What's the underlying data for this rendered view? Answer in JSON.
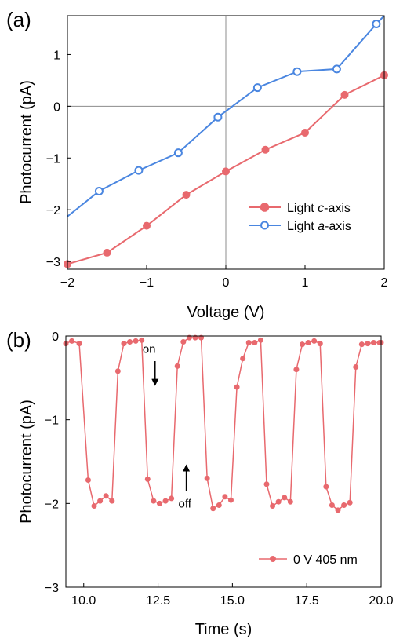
{
  "colors": {
    "red": "#e8696e",
    "blue": "#4a86e0",
    "axis": "#000000",
    "zero": "#8c8c8c"
  },
  "chart_data": [
    {
      "type": "line",
      "panel_label": "(a)",
      "xlabel": "Voltage (V)",
      "ylabel": "Photocurrent (pA)",
      "xlim": [
        -2,
        2
      ],
      "ylim": [
        -3.15,
        1.75
      ],
      "xticks": [
        -2,
        -1,
        0,
        1,
        2
      ],
      "xtick_labels": [
        "−2",
        "−1",
        "0",
        "1",
        "2"
      ],
      "yticks": [
        -3,
        -2,
        -1,
        0,
        1
      ],
      "ytick_labels": [
        "−3",
        "−2",
        "−1",
        "0",
        "1"
      ],
      "legend_position": "lower-right",
      "series": [
        {
          "name_prefix": "Light ",
          "name_italic": "c",
          "name_suffix": "-axis",
          "marker": "filled-circle",
          "color_key": "red",
          "x": [
            -2,
            -1.5,
            -1,
            -0.5,
            0,
            0.5,
            1,
            1.5,
            2
          ],
          "y": [
            -3.05,
            -2.83,
            -2.31,
            -1.71,
            -1.26,
            -0.84,
            -0.51,
            0.22,
            0.6
          ]
        },
        {
          "name_prefix": "Light ",
          "name_italic": "a",
          "name_suffix": "-axis",
          "marker": "open-circle",
          "color_key": "blue",
          "x": [
            -2,
            -1.6,
            -1.1,
            -0.6,
            -0.1,
            0.4,
            0.9,
            1.4,
            1.9,
            2
          ],
          "y": [
            -2.13,
            -1.64,
            -1.24,
            -0.9,
            -0.21,
            0.36,
            0.67,
            0.72,
            1.59,
            1.75
          ],
          "marker_mask": [
            false,
            true,
            true,
            true,
            true,
            true,
            true,
            true,
            true,
            false
          ]
        }
      ]
    },
    {
      "type": "line",
      "panel_label": "(b)",
      "xlabel": "Time (s)",
      "ylabel": "Photocurrent (pA)",
      "xlim": [
        9.4,
        20
      ],
      "ylim": [
        -3,
        0
      ],
      "xticks": [
        10,
        12.5,
        15,
        17.5,
        20
      ],
      "xtick_labels": [
        "10.0",
        "12.5",
        "15.0",
        "17.5",
        "20.0"
      ],
      "yticks": [
        -3,
        -2,
        -1,
        0
      ],
      "ytick_labels": [
        "−3",
        "−2",
        "−1",
        "0"
      ],
      "legend_position": "lower-right",
      "annotations": [
        {
          "text": "on",
          "x": 12.2,
          "y": -0.2,
          "arrow_from": [
            12.4,
            -0.3
          ],
          "arrow_to": [
            12.4,
            -0.58
          ]
        },
        {
          "text": "off",
          "x": 13.4,
          "y": -2.05,
          "arrow_from": [
            13.45,
            -1.85
          ],
          "arrow_to": [
            13.45,
            -1.55
          ]
        }
      ],
      "series": [
        {
          "name": "0 V 405 nm",
          "marker": "filled-circle",
          "color_key": "red",
          "x": [
            9.4,
            9.6,
            9.85,
            10.15,
            10.35,
            10.55,
            10.75,
            10.95,
            11.15,
            11.35,
            11.55,
            11.75,
            11.95,
            12.15,
            12.35,
            12.55,
            12.75,
            12.95,
            13.15,
            13.35,
            13.55,
            13.75,
            13.95,
            14.15,
            14.35,
            14.55,
            14.75,
            14.95,
            15.15,
            15.35,
            15.55,
            15.75,
            15.95,
            16.15,
            16.35,
            16.55,
            16.75,
            16.95,
            17.15,
            17.35,
            17.55,
            17.75,
            17.95,
            18.15,
            18.35,
            18.55,
            18.75,
            18.95,
            19.15,
            19.35,
            19.55,
            19.75,
            19.95,
            20
          ],
          "y": [
            -0.09,
            -0.06,
            -0.09,
            -1.72,
            -2.03,
            -1.97,
            -1.91,
            -1.97,
            -0.42,
            -0.09,
            -0.07,
            -0.06,
            -0.05,
            -1.71,
            -1.97,
            -2.0,
            -1.97,
            -1.94,
            -0.36,
            -0.07,
            -0.02,
            -0.02,
            -0.02,
            -1.7,
            -2.06,
            -2.02,
            -1.92,
            -1.96,
            -0.61,
            -0.27,
            -0.08,
            -0.08,
            -0.05,
            -1.77,
            -2.03,
            -1.98,
            -1.93,
            -1.98,
            -0.4,
            -0.1,
            -0.08,
            -0.06,
            -0.09,
            -1.8,
            -2.02,
            -2.08,
            -2.02,
            -1.99,
            -0.37,
            -0.1,
            -0.09,
            -0.08,
            -0.08,
            -0.08
          ]
        }
      ]
    }
  ]
}
